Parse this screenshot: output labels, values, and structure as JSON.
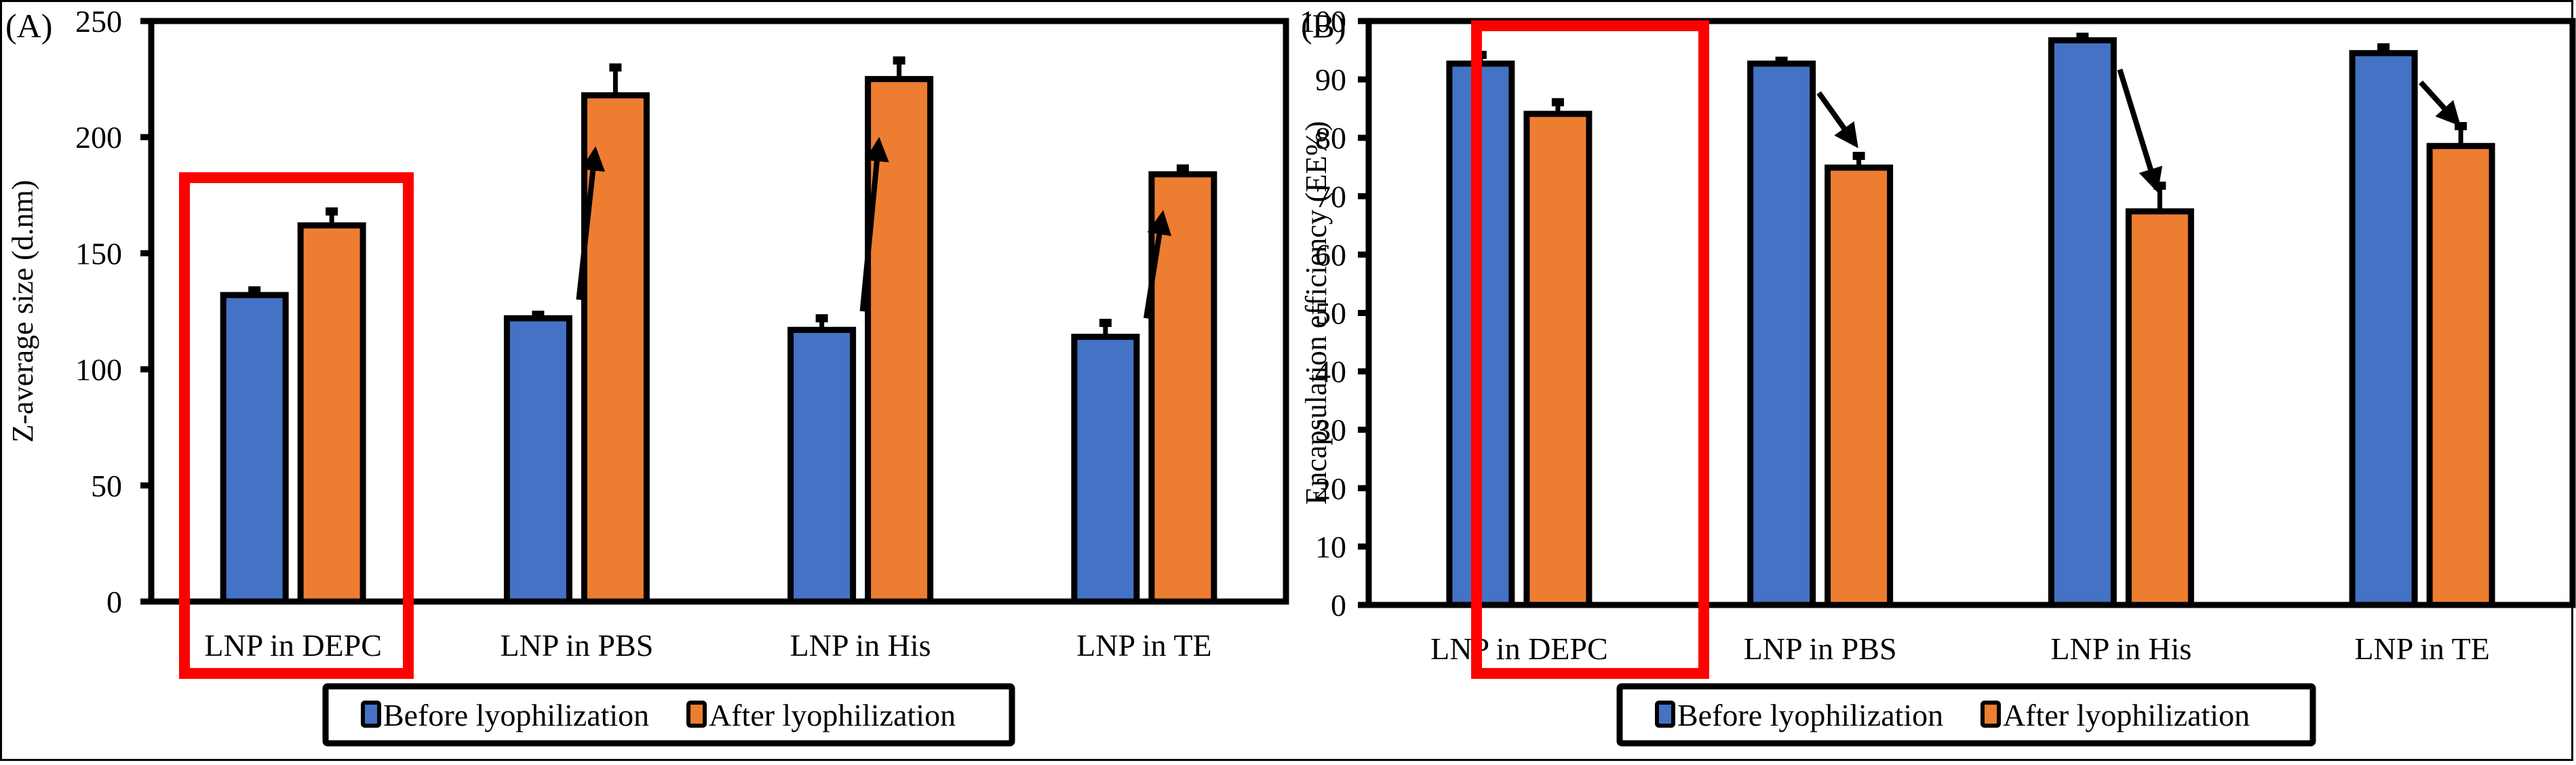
{
  "colors": {
    "before": "#4472C4",
    "after": "#ED7D31",
    "highlight": "#FF0000",
    "axis": "#000000"
  },
  "legend": {
    "before_label": "Before lyophilization",
    "after_label": "After lyophilization"
  },
  "chart_data": [
    {
      "type": "bar",
      "panel_label": "(A)",
      "title": "",
      "xlabel": "",
      "ylabel": "Z-average size (d.nm)",
      "ylim": [
        0,
        250
      ],
      "yticks": [
        0,
        50,
        100,
        150,
        200,
        250
      ],
      "grid": false,
      "legend_position": "bottom",
      "highlighted_category": "LNP in DEPC",
      "categories": [
        "LNP in DEPC",
        "LNP in PBS",
        "LNP in His",
        "LNP in TE"
      ],
      "series": [
        {
          "name": "Before lyophilization",
          "values": [
            132,
            122,
            117,
            114
          ],
          "errors": [
            2,
            1.5,
            5,
            6
          ]
        },
        {
          "name": "After lyophilization",
          "values": [
            162,
            218,
            225,
            184
          ],
          "errors": [
            6,
            12,
            8,
            2.5
          ]
        }
      ],
      "annotations": [
        "up-arrow LNP in PBS",
        "up-arrow LNP in His",
        "up-arrow LNP in TE"
      ]
    },
    {
      "type": "bar",
      "panel_label": "(B)",
      "title": "",
      "xlabel": "",
      "ylabel": "Encapsulation efficiency (EE%)",
      "ylim": [
        0,
        100
      ],
      "yticks": [
        0,
        10,
        20,
        30,
        40,
        50,
        60,
        70,
        80,
        90,
        100
      ],
      "grid": false,
      "legend_position": "bottom",
      "highlighted_category": "LNP in DEPC",
      "categories": [
        "LNP in DEPC",
        "LNP in PBS",
        "LNP in His",
        "LNP in TE"
      ],
      "series": [
        {
          "name": "Before lyophilization",
          "values": [
            92.7,
            92.7,
            96.7,
            94.5
          ],
          "errors": [
            1.5,
            0.5,
            0.6,
            1
          ]
        },
        {
          "name": "After lyophilization",
          "values": [
            84.1,
            74.9,
            67.4,
            78.6
          ],
          "errors": [
            2,
            2,
            4.4,
            3.4
          ]
        }
      ],
      "annotations": [
        "down-arrow LNP in PBS",
        "down-arrow LNP in His",
        "down-arrow LNP in TE"
      ]
    }
  ]
}
